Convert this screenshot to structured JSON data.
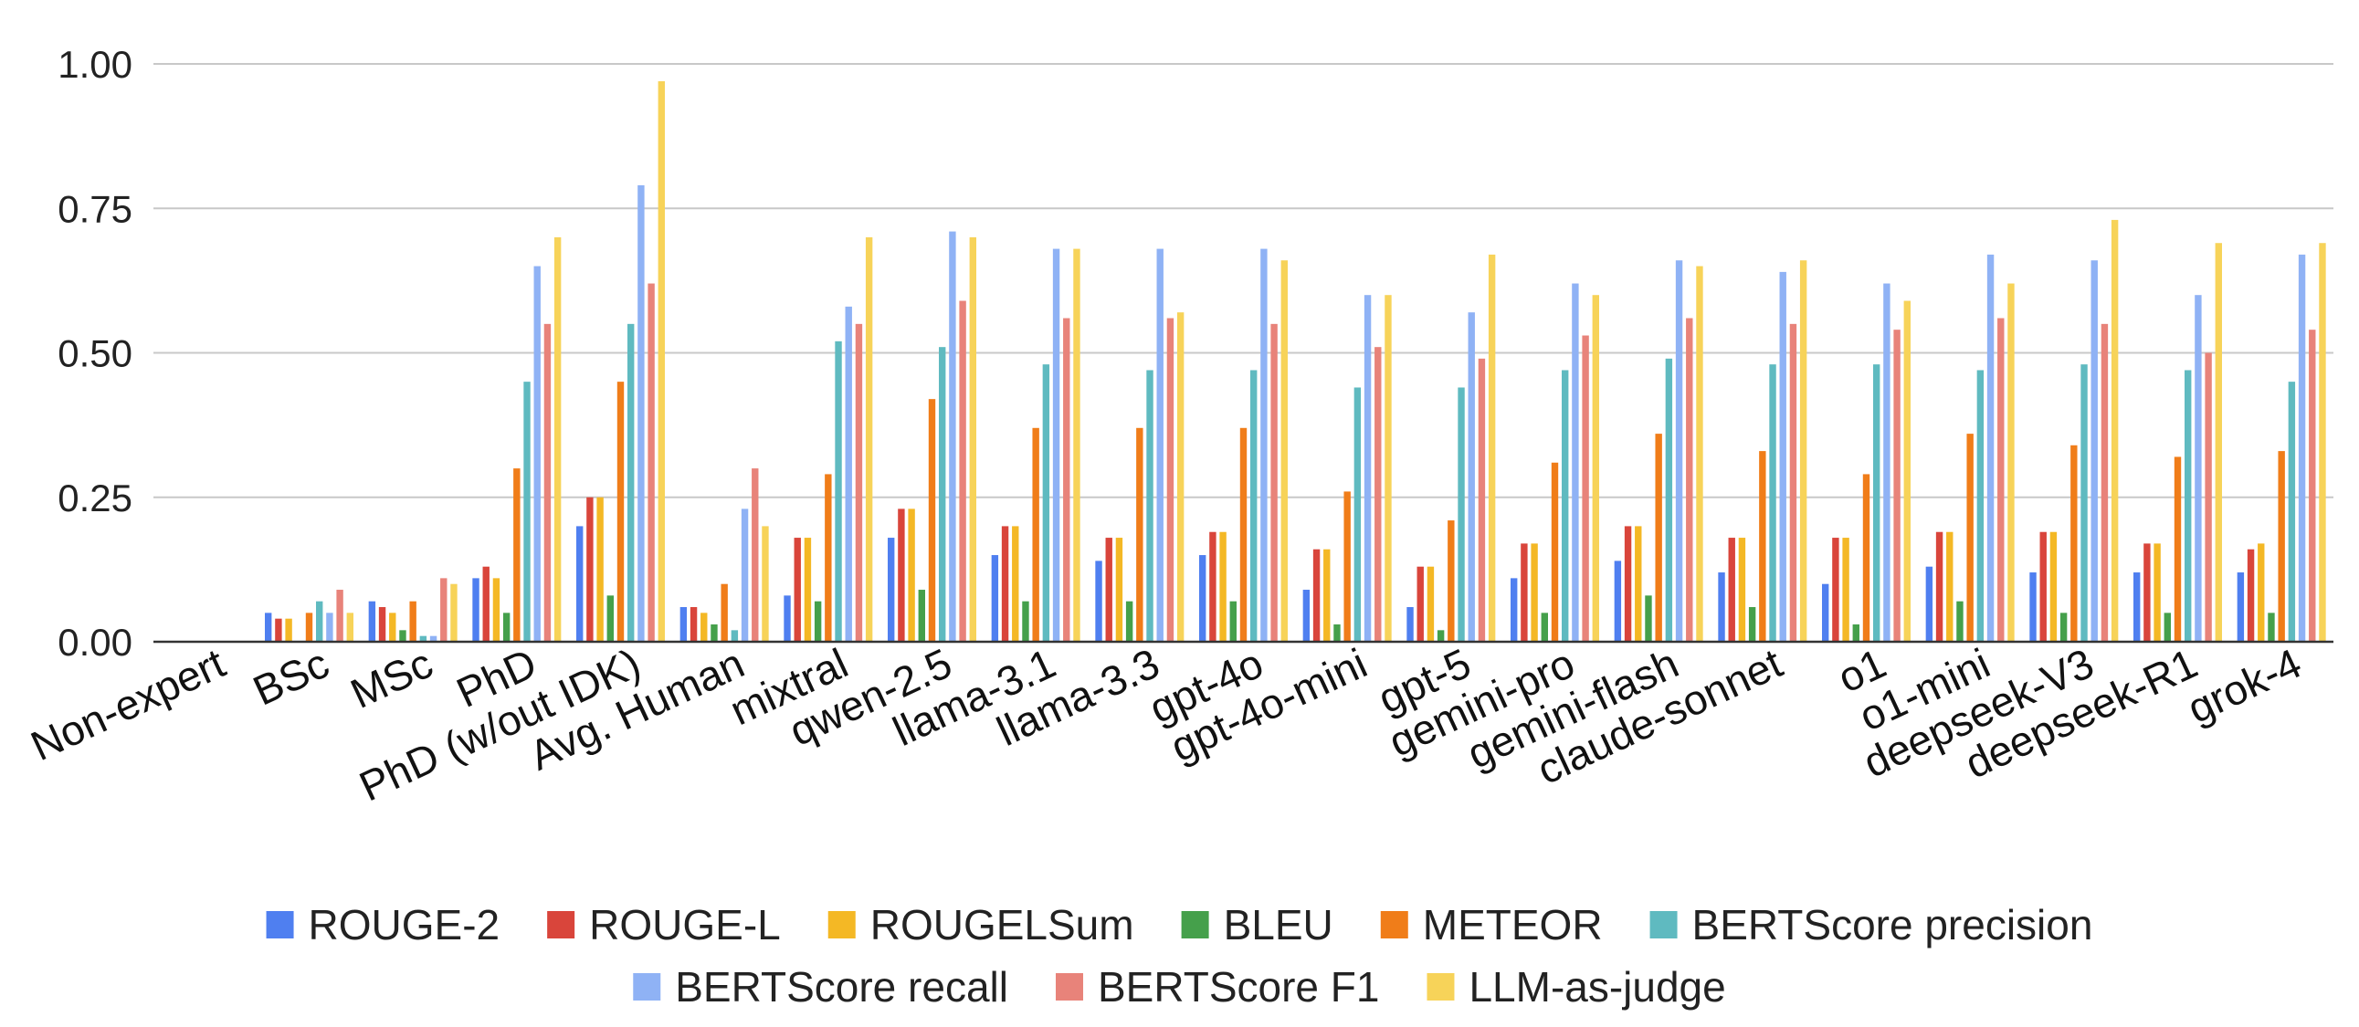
{
  "chart_data": {
    "type": "bar",
    "title": "",
    "xlabel": "",
    "ylabel": "",
    "ylim": [
      0,
      1
    ],
    "yticks": [
      "0.00",
      "0.25",
      "0.50",
      "0.75",
      "1.00"
    ],
    "grid": true,
    "legend_position": "bottom",
    "categories": [
      "Non-expert",
      "BSc",
      "MSc",
      "PhD",
      "PhD (w/out IDK)",
      "Avg. Human",
      "mixtral",
      "qwen-2.5",
      "llama-3.1",
      "llama-3.3",
      "gpt-4o",
      "gpt-4o-mini",
      "gpt-5",
      "gemini-pro",
      "gemini-flash",
      "claude-sonnet",
      "o1",
      "o1-mini",
      "deepseek-V3",
      "deepseek-R1",
      "grok-4"
    ],
    "series": [
      {
        "name": "ROUGE-2",
        "color": "#4f7ff0",
        "values": [
          0,
          0.05,
          0.07,
          0.11,
          0.2,
          0.06,
          0.08,
          0.18,
          0.15,
          0.14,
          0.15,
          0.09,
          0.06,
          0.11,
          0.14,
          0.12,
          0.1,
          0.13,
          0.12,
          0.12,
          0.12
        ]
      },
      {
        "name": "ROUGE-L",
        "color": "#d9453b",
        "values": [
          0,
          0.04,
          0.06,
          0.13,
          0.25,
          0.06,
          0.18,
          0.23,
          0.2,
          0.18,
          0.19,
          0.16,
          0.13,
          0.17,
          0.2,
          0.18,
          0.18,
          0.19,
          0.19,
          0.17,
          0.16
        ]
      },
      {
        "name": "ROUGELSum",
        "color": "#f4b825",
        "values": [
          0,
          0.04,
          0.05,
          0.11,
          0.25,
          0.05,
          0.18,
          0.23,
          0.2,
          0.18,
          0.19,
          0.16,
          0.13,
          0.17,
          0.2,
          0.18,
          0.18,
          0.19,
          0.19,
          0.17,
          0.17
        ]
      },
      {
        "name": "BLEU",
        "color": "#45a04b",
        "values": [
          0,
          0.0,
          0.02,
          0.05,
          0.08,
          0.03,
          0.07,
          0.09,
          0.07,
          0.07,
          0.07,
          0.03,
          0.02,
          0.05,
          0.08,
          0.06,
          0.03,
          0.07,
          0.05,
          0.05,
          0.05
        ]
      },
      {
        "name": "METEOR",
        "color": "#f07d19",
        "values": [
          0,
          0.05,
          0.07,
          0.3,
          0.45,
          0.1,
          0.29,
          0.42,
          0.37,
          0.37,
          0.37,
          0.26,
          0.21,
          0.31,
          0.36,
          0.33,
          0.29,
          0.36,
          0.34,
          0.32,
          0.33
        ]
      },
      {
        "name": "BERTScore precision",
        "color": "#5fbac0",
        "values": [
          0,
          0.07,
          0.01,
          0.45,
          0.55,
          0.02,
          0.52,
          0.51,
          0.48,
          0.47,
          0.47,
          0.44,
          0.44,
          0.47,
          0.49,
          0.48,
          0.48,
          0.47,
          0.48,
          0.47,
          0.45
        ]
      },
      {
        "name": "BERTScore recall",
        "color": "#8fb2f5",
        "values": [
          0,
          0.05,
          0.01,
          0.65,
          0.79,
          0.23,
          0.58,
          0.71,
          0.68,
          0.68,
          0.68,
          0.6,
          0.57,
          0.62,
          0.66,
          0.64,
          0.62,
          0.67,
          0.66,
          0.6,
          0.67
        ]
      },
      {
        "name": "BERTScore F1",
        "color": "#e8837a",
        "values": [
          0,
          0.09,
          0.11,
          0.55,
          0.62,
          0.3,
          0.55,
          0.59,
          0.56,
          0.56,
          0.55,
          0.51,
          0.49,
          0.53,
          0.56,
          0.55,
          0.54,
          0.56,
          0.55,
          0.5,
          0.54
        ]
      },
      {
        "name": "LLM-as-judge",
        "color": "#f7d359",
        "values": [
          0,
          0.05,
          0.1,
          0.7,
          0.97,
          0.2,
          0.7,
          0.7,
          0.68,
          0.57,
          0.66,
          0.6,
          0.67,
          0.6,
          0.65,
          0.66,
          0.59,
          0.62,
          0.73,
          0.69,
          0.69
        ]
      }
    ]
  }
}
